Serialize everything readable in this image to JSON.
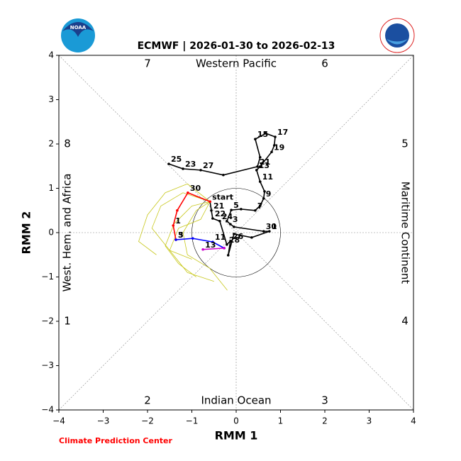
{
  "chart_data": {
    "type": "line",
    "title": "ECMWF | 2026-01-30 to 2026-02-13",
    "x_label": "RMM 1",
    "y_label": "RMM 2",
    "credit": "Climate Prediction Center",
    "regions": [
      "Western Pacific",
      "Indian Ocean",
      "West. Hem. and Africa",
      "Maritime Continent"
    ],
    "phases": [
      "1",
      "2",
      "3",
      "4",
      "5",
      "6",
      "7",
      "8"
    ],
    "xlim": [
      -4,
      4
    ],
    "ylim": [
      -4,
      4
    ],
    "xticks": [
      {
        "value": -4,
        "label": "−4"
      },
      {
        "value": -3,
        "label": "−3"
      },
      {
        "value": -2,
        "label": "−2"
      },
      {
        "value": -1,
        "label": "−1"
      },
      0,
      1,
      2,
      3,
      4
    ],
    "yticks": [
      {
        "value": -4,
        "label": "−4"
      },
      {
        "value": -3,
        "label": "−3"
      },
      {
        "value": -2,
        "label": "−2"
      },
      {
        "value": -1,
        "label": "−1"
      },
      0,
      1,
      2,
      3,
      4
    ],
    "series": [
      {
        "color": "#c8c81e",
        "x": [
          -0.59,
          -1.0,
          -1.4,
          -1.6,
          -1.3,
          -0.9
        ],
        "values": [
          0.7,
          0.6,
          0.2,
          -0.3,
          -0.7,
          -1.0
        ]
      },
      {
        "color": "#c8c81e",
        "x": [
          -0.59,
          -1.2,
          -1.7,
          -1.9,
          -1.5,
          -1.0
        ],
        "values": [
          0.7,
          0.9,
          0.6,
          0.1,
          -0.4,
          -0.6
        ]
      },
      {
        "color": "#c8c81e",
        "x": [
          -0.59,
          -0.9,
          -1.2,
          -1.1,
          -0.6,
          -0.2
        ],
        "values": [
          0.7,
          0.5,
          0.0,
          -0.5,
          -0.8,
          -1.3
        ]
      },
      {
        "color": "#c8c81e",
        "x": [
          -0.59,
          -1.1,
          -1.6,
          -2.0,
          -2.2,
          -1.8
        ],
        "values": [
          0.7,
          1.1,
          0.9,
          0.4,
          -0.2,
          -0.5
        ]
      },
      {
        "color": "#c8c81e",
        "x": [
          -0.59,
          -0.8,
          -1.3,
          -1.5,
          -1.1,
          -0.5
        ],
        "values": [
          0.7,
          0.3,
          0.1,
          -0.4,
          -0.9,
          -1.1
        ]
      },
      {
        "color": "#000000",
        "x": [
          -1.52,
          -1.2,
          -0.8,
          -0.29,
          0.48,
          0.54,
          0.43,
          0.67,
          0.88,
          0.86,
          0.8,
          0.54,
          0.46,
          0.54,
          0.64,
          0.62,
          0.54,
          0.43,
          0.11,
          -0.11,
          -0.21,
          -0.13,
          -0.05,
          0.62,
          0.75,
          0.35,
          -0.05,
          -0.18,
          -0.13,
          -0.21,
          -0.37,
          -0.53,
          -0.56,
          -0.59
        ],
        "values": [
          1.55,
          1.44,
          1.41,
          1.3,
          1.49,
          1.7,
          2.11,
          2.24,
          2.16,
          1.97,
          1.82,
          1.49,
          1.41,
          1.15,
          0.93,
          0.77,
          0.61,
          0.5,
          0.53,
          0.51,
          0.26,
          0.19,
          0.13,
          0.03,
          0.03,
          -0.11,
          -0.03,
          -0.51,
          -0.19,
          -0.27,
          0.26,
          0.32,
          0.5,
          0.7
        ],
        "labels": [
          "25",
          "23",
          "27",
          null,
          "21",
          null,
          "15",
          null,
          "17",
          null,
          "19",
          null,
          "13",
          "11",
          null,
          "9",
          null,
          "7",
          null,
          "5",
          null,
          "3",
          null,
          "30",
          "1",
          null,
          null,
          null,
          "26",
          "28",
          "24",
          "22",
          "21",
          "start"
        ]
      },
      {
        "color": "#ff0000",
        "x": [
          -0.59,
          -1.09,
          -1.33,
          -1.42,
          -1.36
        ],
        "values": [
          0.7,
          0.9,
          0.5,
          0.16,
          -0.16
        ],
        "labels": [
          null,
          "30",
          null,
          "1",
          "3"
        ]
      },
      {
        "color": "#0000ff",
        "x": [
          -1.36,
          -0.98,
          -0.53,
          -0.27
        ],
        "values": [
          -0.16,
          -0.13,
          -0.21,
          -0.35
        ],
        "labels": [
          "5",
          null,
          "11",
          null
        ]
      },
      {
        "color": "#cc00cc",
        "x": [
          -0.27,
          -0.75
        ],
        "values": [
          -0.35,
          -0.38
        ],
        "labels": [
          null,
          "13"
        ]
      }
    ]
  }
}
